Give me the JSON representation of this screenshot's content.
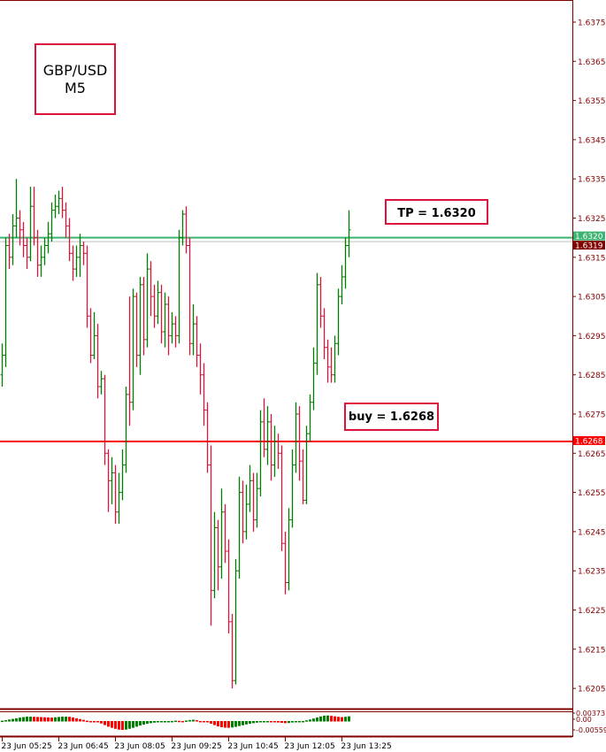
{
  "chart_data": {
    "type": "ohlc",
    "symbol": "GBP/USD",
    "timeframe": "M5",
    "y_ticks": [
      "1.6375",
      "1.6365",
      "1.6355",
      "1.6345",
      "1.6335",
      "1.6325",
      "1.6315",
      "1.6305",
      "1.6295",
      "1.6285",
      "1.6275",
      "1.6265",
      "1.6255",
      "1.6245",
      "1.6235",
      "1.6225",
      "1.6215",
      "1.6205"
    ],
    "ylim": [
      1.61995,
      1.63805
    ],
    "x_ticks": [
      "23 Jun 05:25",
      "23 Jun 06:45",
      "23 Jun 08:05",
      "23 Jun 09:25",
      "23 Jun 10:45",
      "23 Jun 12:05",
      "23 Jun 13:25"
    ],
    "bar_interval_minutes": 5,
    "first_bar_time": "23 Jun 05:25",
    "bars": [
      [
        1.6285,
        1.6293,
        1.6282,
        1.629
      ],
      [
        1.629,
        1.632,
        1.6287,
        1.6318
      ],
      [
        1.6318,
        1.6321,
        1.6312,
        1.6315
      ],
      [
        1.6315,
        1.6326,
        1.6313,
        1.6323
      ],
      [
        1.6323,
        1.6335,
        1.632,
        1.6325
      ],
      [
        1.6325,
        1.6327,
        1.6318,
        1.6322
      ],
      [
        1.6322,
        1.6324,
        1.6315,
        1.6318
      ],
      [
        1.6318,
        1.632,
        1.6312,
        1.6315
      ],
      [
        1.6315,
        1.6333,
        1.6314,
        1.6328
      ],
      [
        1.6328,
        1.6333,
        1.6318,
        1.632
      ],
      [
        1.632,
        1.6322,
        1.631,
        1.6313
      ],
      [
        1.6313,
        1.6318,
        1.631,
        1.6315
      ],
      [
        1.6315,
        1.632,
        1.6313,
        1.6318
      ],
      [
        1.6318,
        1.6324,
        1.6316,
        1.6321
      ],
      [
        1.6321,
        1.6329,
        1.6319,
        1.6327
      ],
      [
        1.6327,
        1.6331,
        1.6325,
        1.6328
      ],
      [
        1.6328,
        1.6332,
        1.6326,
        1.633
      ],
      [
        1.633,
        1.6333,
        1.6325,
        1.6327
      ],
      [
        1.6327,
        1.6329,
        1.632,
        1.6323
      ],
      [
        1.6323,
        1.6325,
        1.6314,
        1.6316
      ],
      [
        1.6316,
        1.6318,
        1.6309,
        1.6312
      ],
      [
        1.6312,
        1.6318,
        1.631,
        1.6315
      ],
      [
        1.6315,
        1.6321,
        1.631,
        1.6318
      ],
      [
        1.6318,
        1.6319,
        1.6313,
        1.6316
      ],
      [
        1.6316,
        1.6318,
        1.6297,
        1.63
      ],
      [
        1.63,
        1.6302,
        1.6288,
        1.629
      ],
      [
        1.629,
        1.6301,
        1.6289,
        1.6295
      ],
      [
        1.6295,
        1.6298,
        1.6279,
        1.6282
      ],
      [
        1.6282,
        1.6286,
        1.628,
        1.6284
      ],
      [
        1.6284,
        1.6285,
        1.6262,
        1.6265
      ],
      [
        1.6265,
        1.6266,
        1.625,
        1.6258
      ],
      [
        1.6258,
        1.6264,
        1.6252,
        1.626
      ],
      [
        1.626,
        1.6262,
        1.6247,
        1.625
      ],
      [
        1.625,
        1.626,
        1.6247,
        1.6255
      ],
      [
        1.6255,
        1.6266,
        1.6253,
        1.6262
      ],
      [
        1.6262,
        1.6282,
        1.626,
        1.628
      ],
      [
        1.628,
        1.6305,
        1.6272,
        1.6278
      ],
      [
        1.6278,
        1.6307,
        1.6276,
        1.6305
      ],
      [
        1.6305,
        1.6306,
        1.6287,
        1.629
      ],
      [
        1.629,
        1.631,
        1.6285,
        1.6308
      ],
      [
        1.6308,
        1.631,
        1.629,
        1.6294
      ],
      [
        1.6294,
        1.6316,
        1.6292,
        1.6312
      ],
      [
        1.6312,
        1.6314,
        1.63,
        1.6305
      ],
      [
        1.6305,
        1.6308,
        1.6297,
        1.63
      ],
      [
        1.63,
        1.6309,
        1.6298,
        1.6306
      ],
      [
        1.6306,
        1.6308,
        1.6293,
        1.6296
      ],
      [
        1.6296,
        1.6306,
        1.6292,
        1.6303
      ],
      [
        1.6303,
        1.6305,
        1.629,
        1.6295
      ],
      [
        1.6295,
        1.6301,
        1.6293,
        1.6298
      ],
      [
        1.6298,
        1.63,
        1.6292,
        1.6295
      ],
      [
        1.6295,
        1.6322,
        1.6293,
        1.632
      ],
      [
        1.632,
        1.6327,
        1.6318,
        1.6326
      ],
      [
        1.6326,
        1.6328,
        1.6316,
        1.6318
      ],
      [
        1.6318,
        1.632,
        1.629,
        1.6293
      ],
      [
        1.6293,
        1.6303,
        1.629,
        1.6298
      ],
      [
        1.6298,
        1.63,
        1.6287,
        1.629
      ],
      [
        1.629,
        1.6293,
        1.628,
        1.6285
      ],
      [
        1.6285,
        1.6288,
        1.6272,
        1.6276
      ],
      [
        1.6276,
        1.6278,
        1.626,
        1.6262
      ],
      [
        1.6262,
        1.6267,
        1.6221,
        1.623
      ],
      [
        1.623,
        1.625,
        1.6228,
        1.6246
      ],
      [
        1.6246,
        1.6248,
        1.623,
        1.6236
      ],
      [
        1.6236,
        1.6256,
        1.6233,
        1.625
      ],
      [
        1.625,
        1.6252,
        1.6237,
        1.624
      ],
      [
        1.624,
        1.6243,
        1.6219,
        1.6222
      ],
      [
        1.6222,
        1.6224,
        1.6205,
        1.6207
      ],
      [
        1.6207,
        1.6238,
        1.6206,
        1.6235
      ],
      [
        1.6235,
        1.6259,
        1.6233,
        1.6255
      ],
      [
        1.6255,
        1.6258,
        1.6242,
        1.6245
      ],
      [
        1.6245,
        1.6257,
        1.6243,
        1.6252
      ],
      [
        1.6252,
        1.6262,
        1.625,
        1.6258
      ],
      [
        1.6258,
        1.626,
        1.6245,
        1.6248
      ],
      [
        1.6248,
        1.626,
        1.6246,
        1.6256
      ],
      [
        1.6256,
        1.6276,
        1.6254,
        1.6273
      ],
      [
        1.6273,
        1.6279,
        1.6264,
        1.6266
      ],
      [
        1.6266,
        1.6277,
        1.6262,
        1.6273
      ],
      [
        1.6273,
        1.6275,
        1.6258,
        1.6262
      ],
      [
        1.6262,
        1.6272,
        1.6259,
        1.6268
      ],
      [
        1.6268,
        1.627,
        1.6261,
        1.6265
      ],
      [
        1.6265,
        1.6267,
        1.624,
        1.6242
      ],
      [
        1.6242,
        1.6245,
        1.6229,
        1.6232
      ],
      [
        1.6232,
        1.6251,
        1.623,
        1.6248
      ],
      [
        1.6248,
        1.6266,
        1.6246,
        1.6262
      ],
      [
        1.6262,
        1.6278,
        1.626,
        1.6275
      ],
      [
        1.6275,
        1.6277,
        1.6258,
        1.6263
      ],
      [
        1.6263,
        1.6266,
        1.6252,
        1.6253
      ],
      [
        1.6253,
        1.6272,
        1.6252,
        1.627
      ],
      [
        1.627,
        1.628,
        1.6268,
        1.6278
      ],
      [
        1.6278,
        1.6292,
        1.6276,
        1.6288
      ],
      [
        1.6288,
        1.6311,
        1.6285,
        1.6308
      ],
      [
        1.6308,
        1.631,
        1.6297,
        1.63
      ],
      [
        1.63,
        1.6302,
        1.6289,
        1.6292
      ],
      [
        1.6292,
        1.6294,
        1.6283,
        1.6287
      ],
      [
        1.6287,
        1.6292,
        1.6283,
        1.6285
      ],
      [
        1.6285,
        1.6295,
        1.6283,
        1.6293
      ],
      [
        1.6293,
        1.6307,
        1.629,
        1.6305
      ],
      [
        1.6305,
        1.6313,
        1.6303,
        1.631
      ],
      [
        1.631,
        1.632,
        1.6307,
        1.6318
      ],
      [
        1.6318,
        1.6327,
        1.6315,
        1.6322
      ]
    ],
    "levels": [
      {
        "label": "1.6320",
        "price": 1.632,
        "color": "#3cb371",
        "box_text_color": "#ffffff"
      },
      {
        "label": "1.6319",
        "price": 1.6319,
        "color": "#c0c0c0",
        "box_color": "#800000",
        "box_text_color": "#ffffff"
      },
      {
        "label": "1.6268",
        "price": 1.6268,
        "color": "#ff0000",
        "box_text_color": "#ffffff"
      }
    ],
    "annotations": {
      "symbol_box": [
        "GBP/USD",
        "M5"
      ],
      "tp_label": "TP = 1.6320",
      "buy_label": "buy = 1.6268"
    },
    "indicator": {
      "type": "histogram",
      "y_ticks": [
        "0.00373",
        "0.00",
        "-0.00559"
      ],
      "ylim": [
        -0.00559,
        0.00373
      ],
      "values": [
        0.0005,
        0.0008,
        0.0012,
        0.0016,
        0.002,
        0.0024,
        0.0027,
        0.003,
        0.003,
        0.0029,
        0.0028,
        0.0027,
        0.0026,
        0.0025,
        0.0024,
        0.0026,
        0.0028,
        0.003,
        0.003,
        0.0029,
        0.0025,
        0.002,
        0.0015,
        0.001,
        0.0005,
        0.0002,
        -0.0003,
        -0.0008,
        -0.0015,
        -0.0025,
        -0.0035,
        -0.0042,
        -0.0048,
        -0.0053,
        -0.0055,
        -0.0053,
        -0.0048,
        -0.0042,
        -0.0035,
        -0.0028,
        -0.0022,
        -0.0017,
        -0.0013,
        -0.001,
        -0.0007,
        -0.0004,
        -0.0002,
        0.0,
        0.0003,
        0.0005,
        0.0004,
        0.0003,
        0.0006,
        0.0009,
        0.0011,
        0.0008,
        0.0003,
        -0.0002,
        -0.0008,
        -0.0016,
        -0.0025,
        -0.0033,
        -0.0038,
        -0.0041,
        -0.0042,
        -0.004,
        -0.0036,
        -0.0031,
        -0.0026,
        -0.0021,
        -0.0017,
        -0.0013,
        -0.001,
        -0.0007,
        -0.0005,
        -0.0004,
        -0.0005,
        -0.0007,
        -0.0009,
        -0.0011,
        -0.0013,
        -0.0012,
        -0.0009,
        -0.0005,
        -0.0001,
        0.0003,
        0.0007,
        0.0012,
        0.0018,
        0.0025,
        0.0031,
        0.0036,
        0.0037,
        0.0035,
        0.0032,
        0.0029,
        0.0027,
        0.0029,
        0.0032
      ],
      "up_color": "#008000",
      "down_color": "#ff0000"
    },
    "colors": {
      "bull": "#008000",
      "bear": "#dc143c",
      "neutral": "#000000",
      "axis": "#800000",
      "background": "#ffffff"
    },
    "grid": false
  }
}
